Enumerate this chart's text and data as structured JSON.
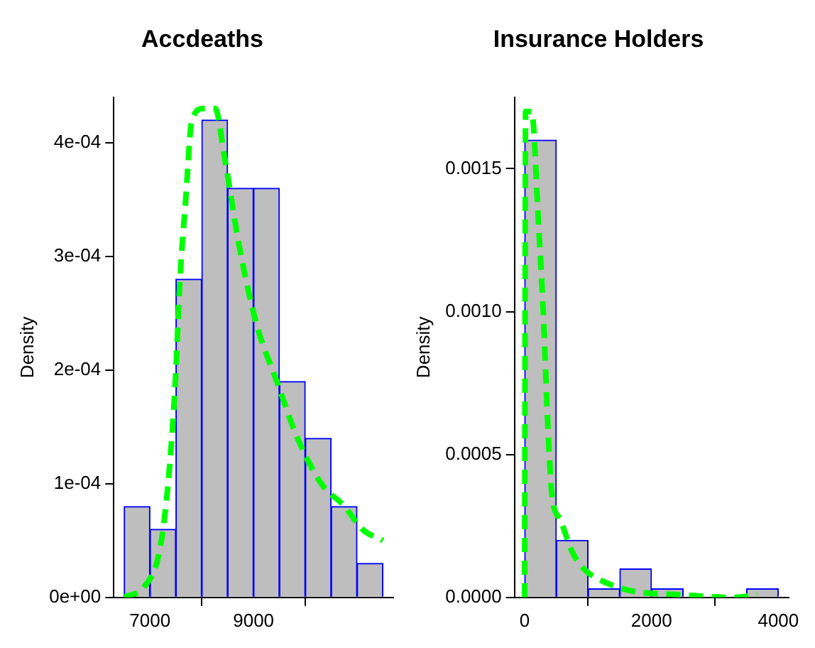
{
  "chart_data": [
    {
      "type": "histogram",
      "title": "Accdeaths",
      "ylabel": "Density",
      "xlim": [
        6300,
        11700
      ],
      "ylim": [
        0,
        0.00044
      ],
      "xticks": [
        7000,
        9000
      ],
      "yticks": [
        {
          "value": 0,
          "label": "0e+00"
        },
        {
          "value": 0.0001,
          "label": "1e-04"
        },
        {
          "value": 0.0002,
          "label": "2e-04"
        },
        {
          "value": 0.0003,
          "label": "3e-04"
        },
        {
          "value": 0.0004,
          "label": "4e-04"
        }
      ],
      "series": [
        {
          "color": "#bebebe",
          "bins": [
            6500,
            7000,
            7500,
            8000,
            8500,
            9000,
            9500,
            10000,
            10500,
            11000,
            11500
          ],
          "values": [
            8e-05,
            6e-05,
            0.00028,
            0.00042,
            0.00036,
            0.00036,
            0.00019,
            0.00014,
            8e-05,
            3e-05
          ]
        },
        {
          "type": "line",
          "color": "#00ff00",
          "line_style": "dashed",
          "x": [
            6500,
            6900,
            7180,
            7350,
            7490,
            7580,
            7690,
            7810,
            8030,
            8260,
            8430,
            8720,
            9060,
            9450,
            9850,
            10310,
            10760,
            11100,
            11500
          ],
          "values": [
            0,
            1e-05,
            4e-05,
            0.0001,
            0.00019,
            0.00028,
            0.00035,
            0.00042,
            0.00043,
            0.00043,
            0.00039,
            0.00031,
            0.00024,
            0.00019,
            0.00014,
            0.0001,
            8e-05,
            6e-05,
            5e-05
          ]
        }
      ]
    },
    {
      "type": "histogram",
      "title": "Insurance Holders",
      "ylabel": "Density",
      "xlim": [
        -160,
        4160
      ],
      "ylim": [
        0,
        0.00175
      ],
      "xticks": [
        0,
        2000,
        4000
      ],
      "yticks": [
        {
          "value": 0,
          "label": "0.0000"
        },
        {
          "value": 0.0005,
          "label": "0.0005"
        },
        {
          "value": 0.001,
          "label": "0.0010"
        },
        {
          "value": 0.0015,
          "label": "0.0015"
        }
      ],
      "series": [
        {
          "color": "#bebebe",
          "bins": [
            0,
            500,
            1000,
            1500,
            2000,
            2500,
            3000,
            3500,
            4000
          ],
          "values": [
            0.0016,
            0.0002,
            3e-05,
            0.0001,
            3e-05,
            0,
            0,
            3e-05
          ]
        },
        {
          "type": "line",
          "color": "#00ff00",
          "line_style": "dashed",
          "x": [
            0,
            15,
            110,
            220,
            293,
            366,
            430,
            566,
            749,
            932,
            1297,
            1753,
            2393,
            3306,
            3671
          ],
          "values": [
            0,
            0.0017,
            0.0017,
            0.0013,
            0.001,
            0.0006,
            0.00036,
            0.00027,
            0.00016,
            0.0001,
            5e-05,
            2e-05,
            1e-05,
            0,
            1e-05
          ]
        }
      ]
    }
  ]
}
